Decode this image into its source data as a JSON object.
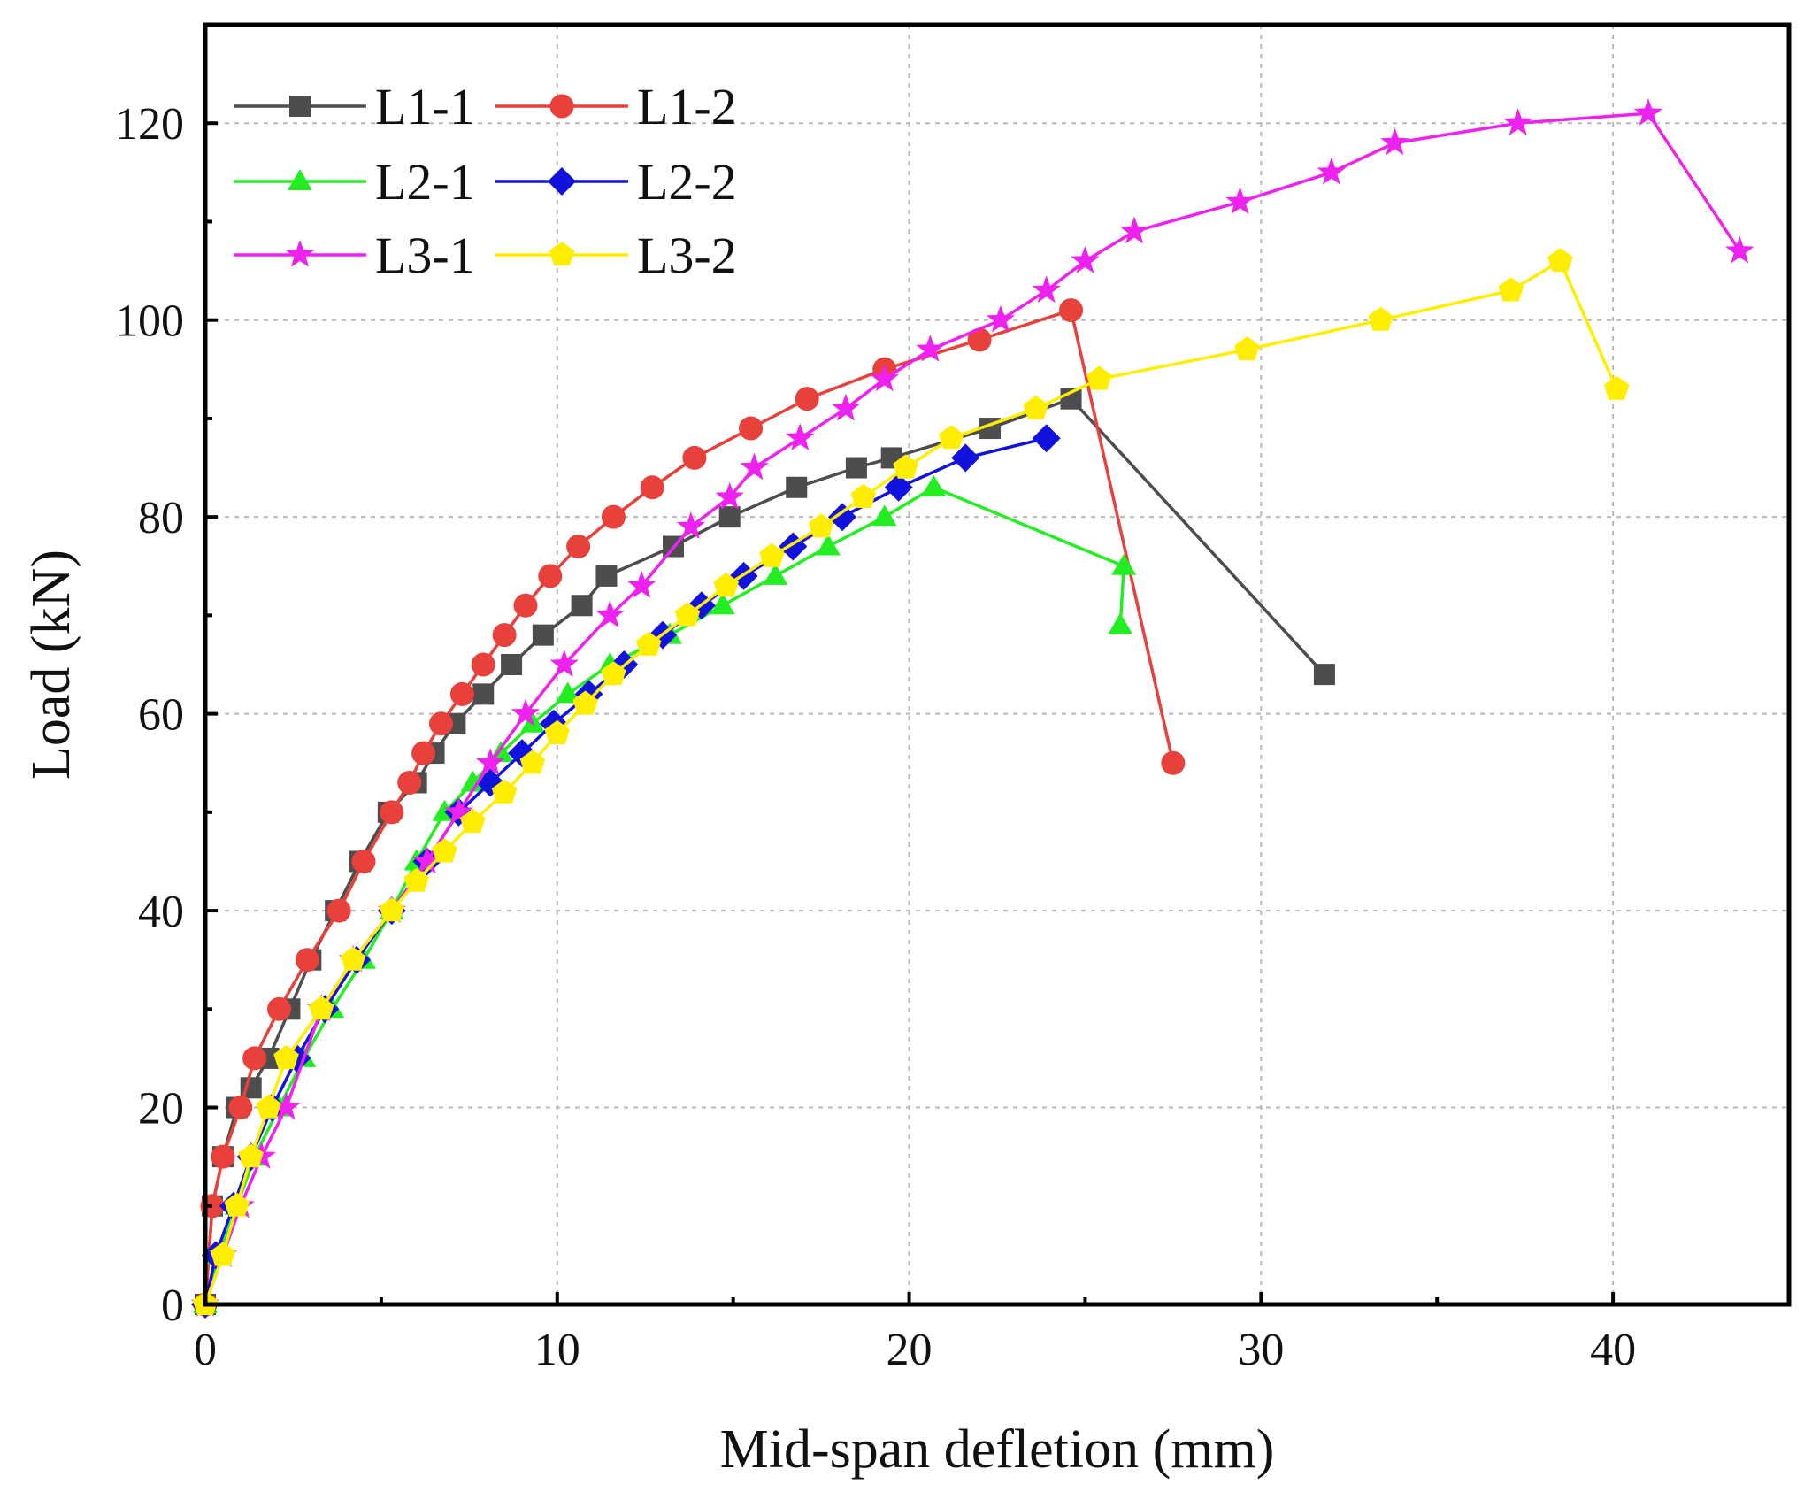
{
  "chart_data": {
    "type": "line",
    "title": "",
    "xlabel": "Mid-span defletion (mm)",
    "ylabel": "Load (kN)",
    "xlim": [
      0,
      45
    ],
    "ylim": [
      0,
      130
    ],
    "xticks": [
      0,
      10,
      20,
      30,
      40
    ],
    "yticks": [
      0,
      20,
      40,
      60,
      80,
      100,
      120
    ],
    "grid": true,
    "legend_position": "top-left",
    "series": [
      {
        "name": "L1-1",
        "color": "#4d4d4d",
        "marker": "square",
        "x": [
          0,
          0.2,
          0.5,
          0.9,
          1.3,
          1.8,
          2.4,
          3.0,
          3.7,
          4.4,
          5.2,
          6.0,
          6.5,
          7.1,
          7.9,
          8.7,
          9.6,
          10.7,
          11.4,
          13.3,
          14.9,
          16.8,
          18.5,
          19.5,
          22.3,
          24.6,
          31.8
        ],
        "y": [
          0,
          10,
          15,
          20,
          22,
          25,
          30,
          35,
          40,
          45,
          50,
          53,
          56,
          59,
          62,
          65,
          68,
          71,
          74,
          77,
          80,
          83,
          85,
          86,
          89,
          92,
          64
        ]
      },
      {
        "name": "L1-2",
        "color": "#e8403a",
        "marker": "circle",
        "x": [
          0,
          0.2,
          0.5,
          1.0,
          1.4,
          2.1,
          2.9,
          3.8,
          4.5,
          5.3,
          5.8,
          6.2,
          6.7,
          7.3,
          7.9,
          8.5,
          9.1,
          9.8,
          10.6,
          11.6,
          12.7,
          13.9,
          15.5,
          17.1,
          19.3,
          22.0,
          24.6,
          27.5
        ],
        "y": [
          0,
          10,
          15,
          20,
          25,
          30,
          35,
          40,
          45,
          50,
          53,
          56,
          59,
          62,
          65,
          68,
          71,
          74,
          77,
          80,
          83,
          86,
          89,
          92,
          95,
          98,
          101,
          55
        ]
      },
      {
        "name": "L2-1",
        "color": "#22ee22",
        "marker": "triangle",
        "x": [
          0,
          0.4,
          0.9,
          1.4,
          2.1,
          2.8,
          3.6,
          4.5,
          5.3,
          6.0,
          6.8,
          7.6,
          8.4,
          9.3,
          10.3,
          11.5,
          13.2,
          14.7,
          16.2,
          17.7,
          19.3,
          20.7,
          26.1,
          26.0
        ],
        "y": [
          0,
          5,
          10,
          15,
          20,
          25,
          30,
          35,
          40,
          45,
          50,
          53,
          56,
          59,
          62,
          65,
          68,
          71,
          74,
          77,
          80,
          83,
          75,
          69
        ]
      },
      {
        "name": "L2-2",
        "color": "#1212dd",
        "marker": "diamond",
        "x": [
          0,
          0.3,
          0.8,
          1.3,
          1.9,
          2.6,
          3.4,
          4.3,
          5.3,
          6.3,
          7.2,
          8.1,
          9.0,
          9.9,
          10.9,
          11.9,
          13.0,
          14.1,
          15.3,
          16.7,
          18.1,
          19.7,
          21.6,
          23.9
        ],
        "y": [
          0,
          5,
          10,
          15,
          20,
          25,
          30,
          35,
          40,
          45,
          50,
          53,
          56,
          59,
          62,
          65,
          68,
          71,
          74,
          77,
          80,
          83,
          86,
          88
        ]
      },
      {
        "name": "L3-1",
        "color": "#ee22ee",
        "marker": "star",
        "x": [
          0,
          0.5,
          1.0,
          1.6,
          2.3,
          3.3,
          4.2,
          5.3,
          6.3,
          7.2,
          8.1,
          9.1,
          10.2,
          11.5,
          12.4,
          13.8,
          14.9,
          15.6,
          16.9,
          18.2,
          19.3,
          20.6,
          22.6,
          23.9,
          25.0,
          26.4,
          29.4,
          32.0,
          33.8,
          37.3,
          41.0,
          43.6
        ],
        "y": [
          0,
          5,
          10,
          15,
          20,
          30,
          35,
          40,
          45,
          50,
          55,
          60,
          65,
          70,
          73,
          79,
          82,
          85,
          88,
          91,
          94,
          97,
          100,
          103,
          106,
          109,
          112,
          115,
          118,
          120,
          121,
          107
        ]
      },
      {
        "name": "L3-2",
        "color": "#ffee00",
        "marker": "pentagon",
        "x": [
          0,
          0.5,
          0.9,
          1.3,
          1.8,
          2.3,
          3.3,
          4.2,
          5.3,
          6.0,
          6.8,
          7.6,
          8.5,
          9.3,
          10.0,
          10.8,
          11.6,
          12.6,
          13.7,
          14.8,
          16.1,
          17.5,
          18.7,
          19.9,
          21.2,
          23.6,
          25.4,
          29.6,
          33.4,
          37.1,
          38.5,
          40.1
        ],
        "y": [
          0,
          5,
          10,
          15,
          20,
          25,
          30,
          35,
          40,
          43,
          46,
          49,
          52,
          55,
          58,
          61,
          64,
          67,
          70,
          73,
          76,
          79,
          82,
          85,
          88,
          91,
          94,
          97,
          100,
          103,
          106,
          93
        ]
      }
    ]
  }
}
